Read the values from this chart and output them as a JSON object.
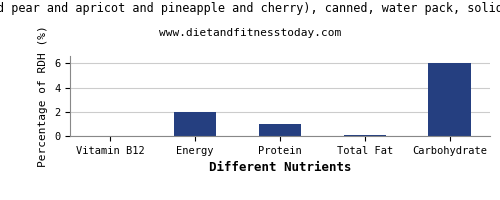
{
  "title_line1": "d pear and apricot and pineapple and cherry), canned, water pack, solid",
  "subtitle": "www.dietandfitnesstoday.com",
  "categories": [
    "Vitamin B12",
    "Energy",
    "Protein",
    "Total Fat",
    "Carbohydrate"
  ],
  "values": [
    0,
    2.0,
    1.0,
    0.05,
    6.0
  ],
  "bar_color": "#253f80",
  "xlabel": "Different Nutrients",
  "ylabel": "Percentage of RDH (%)",
  "ylim": [
    0,
    6.6
  ],
  "yticks": [
    0,
    2,
    4,
    6
  ],
  "background_color": "#ffffff",
  "grid_color": "#cccccc",
  "title_fontsize": 8.5,
  "subtitle_fontsize": 8,
  "axis_label_fontsize": 8,
  "xlabel_fontsize": 9,
  "tick_fontsize": 7.5
}
